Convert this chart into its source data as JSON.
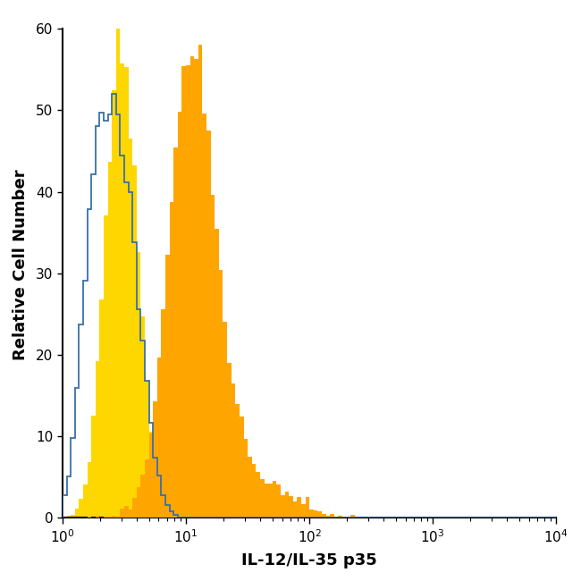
{
  "xlabel": "IL-12/IL-35 p35",
  "ylabel": "Relative Cell Number",
  "xlim_log": [
    1,
    10000
  ],
  "ylim": [
    0,
    62
  ],
  "yticks": [
    0,
    10,
    20,
    30,
    40,
    50,
    60
  ],
  "background_color": "#ffffff",
  "yellow_hist_color": "#FFD700",
  "orange_hist_color": "#FFA500",
  "blue_outline_color": "#3a6fa8",
  "yellow_peak_log": 0.48,
  "yellow_scale_log": 0.13,
  "yellow_peak_height": 60,
  "orange_peak_log": 1.05,
  "orange_scale_log": 0.18,
  "orange_peak_height": 58,
  "blue_peak_log": 0.42,
  "blue_scale_log": 0.16,
  "blue_peak_height": 52,
  "n_bins": 120,
  "seed": 12
}
